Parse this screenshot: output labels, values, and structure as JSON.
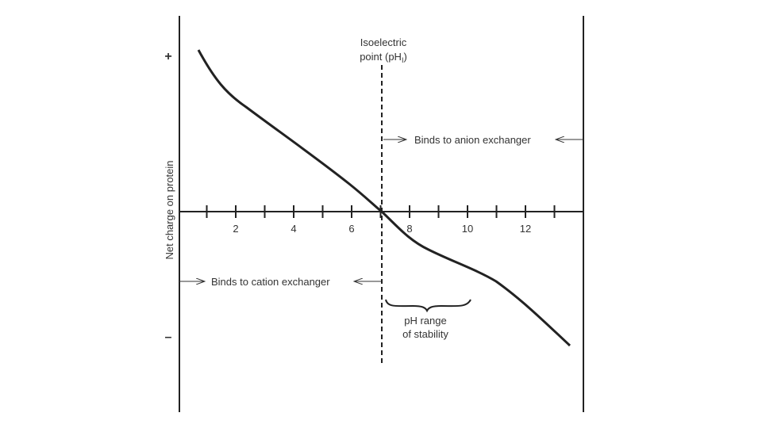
{
  "y_axis": {
    "label": "Net charge on protein",
    "top": "+",
    "bottom": "–"
  },
  "x_axis": {
    "ticks": [
      "2",
      "4",
      "6",
      "8",
      "10",
      "12"
    ]
  },
  "isoelectric": {
    "line1": "Isoelectric",
    "line2": "point (pH",
    "subscript": "I",
    "close": ")"
  },
  "anion": "Binds to anion exchanger",
  "cation": "Binds to cation exchanger",
  "stability": {
    "line1": "pH range",
    "line2": "of stability"
  }
}
